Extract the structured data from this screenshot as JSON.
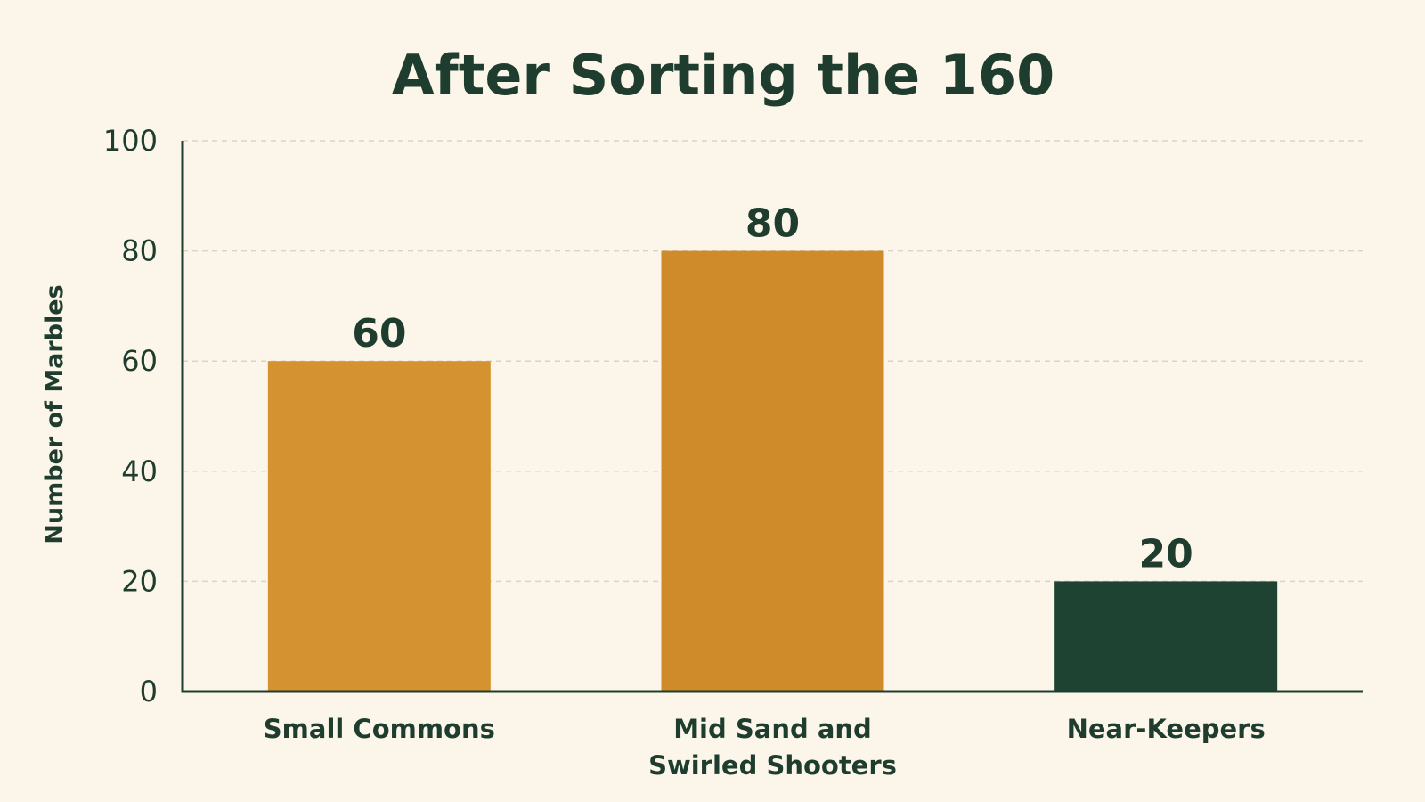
{
  "chart_data": {
    "type": "bar",
    "title": "After Sorting the 160",
    "xlabel": "",
    "ylabel": "Number of Marbles",
    "ylim": [
      0,
      100
    ],
    "yticks": [
      0,
      20,
      40,
      60,
      80,
      100
    ],
    "grid": true,
    "categories": [
      [
        "Small Commons"
      ],
      [
        "Mid Sand and",
        "Swirled Shooters"
      ],
      [
        "Near-Keepers"
      ]
    ],
    "values": [
      60,
      80,
      20
    ],
    "value_labels": [
      "60",
      "80",
      "20"
    ],
    "colors": [
      "#d59231",
      "#cf8a2a",
      "#1f4332"
    ]
  }
}
